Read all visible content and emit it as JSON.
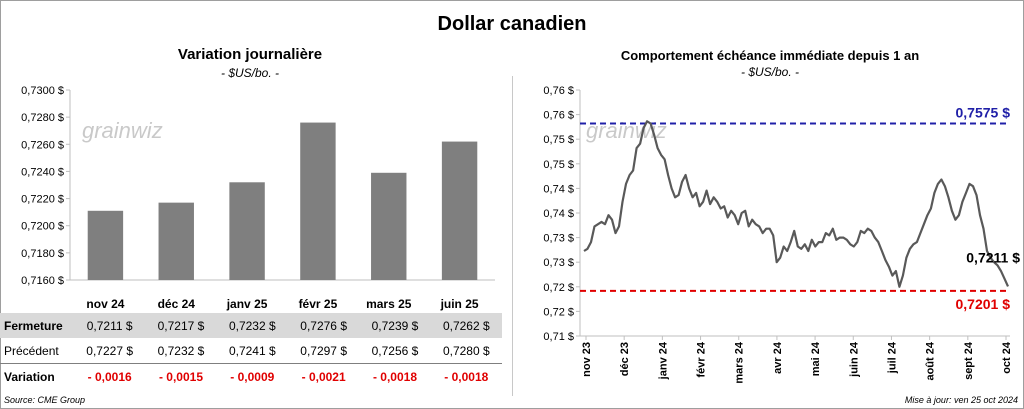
{
  "title": "Dollar canadien",
  "watermark": "grainwiz",
  "left_panel": {
    "title": "Variation  journalière",
    "subtitle": "- $US/bo. -"
  },
  "right_panel": {
    "title": "Comportement échéance immédiate depuis 1 an",
    "subtitle": "- $US/bo. -"
  },
  "table": {
    "rows": [
      {
        "label": "Fermeture",
        "cells": [
          "0,7211  $",
          "0,7217  $",
          "0,7232  $",
          "0,7276  $",
          "0,7239  $",
          "0,7262  $"
        ]
      },
      {
        "label": "Précédent",
        "cells": [
          "0,7227  $",
          "0,7232  $",
          "0,7241  $",
          "0,7297  $",
          "0,7256  $",
          "0,7280  $"
        ]
      },
      {
        "label": "Variation",
        "cells": [
          "- 0,0016",
          "- 0,0015",
          "- 0,0009",
          "- 0,0021",
          "- 0,0018",
          "- 0,0018"
        ]
      }
    ]
  },
  "footer": {
    "source": "Source: CME Group",
    "updated": "Mise à jour: ven 25 oct 2024"
  },
  "colors": {
    "bar": "#7f7f7f",
    "line": "#595959",
    "high_line": "#2020a8",
    "low_line": "#e00000",
    "table_shade": "#d9d9d9"
  },
  "chart_data": [
    {
      "type": "bar",
      "categories": [
        "nov 24",
        "déc 24",
        "janv 25",
        "févr 25",
        "mars 25",
        "juin 25"
      ],
      "values": [
        0.7211,
        0.7217,
        0.7232,
        0.7276,
        0.7239,
        0.7262
      ],
      "ylim": [
        0.716,
        0.73
      ],
      "yticks": [
        "0,7160 $",
        "0,7180 $",
        "0,7200 $",
        "0,7220 $",
        "0,7240 $",
        "0,7260 $",
        "0,7280 $",
        "0,7300 $"
      ],
      "grid": false
    },
    {
      "type": "line",
      "x_labels": [
        "nov 23",
        "déc 23",
        "janv 24",
        "févr 24",
        "mars 24",
        "avr 24",
        "mai 24",
        "juin 24",
        "juil 24",
        "août 24",
        "sept 24",
        "oct 24"
      ],
      "x_start": "2023-10-26",
      "x_end": "2024-10-25",
      "series": [
        {
          "values": [
            0.729,
            0.7295,
            0.731,
            0.7345,
            0.735,
            0.7355,
            0.735,
            0.737,
            0.736,
            0.733,
            0.7345,
            0.74,
            0.744,
            0.746,
            0.747,
            0.752,
            0.753,
            0.7565,
            0.758,
            0.7575,
            0.755,
            0.752,
            0.7505,
            0.7495,
            0.746,
            0.743,
            0.741,
            0.7415,
            0.7445,
            0.746,
            0.743,
            0.741,
            0.742,
            0.739,
            0.74,
            0.7425,
            0.7395,
            0.741,
            0.74,
            0.7385,
            0.739,
            0.7365,
            0.738,
            0.737,
            0.735,
            0.7375,
            0.738,
            0.7345,
            0.736,
            0.735,
            0.7345,
            0.733,
            0.734,
            0.734,
            0.7325,
            0.7265,
            0.7275,
            0.73,
            0.729,
            0.731,
            0.7335,
            0.73,
            0.7295,
            0.7305,
            0.729,
            0.7315,
            0.73,
            0.731,
            0.731,
            0.733,
            0.7325,
            0.734,
            0.7315,
            0.732,
            0.732,
            0.7315,
            0.7305,
            0.73,
            0.731,
            0.7335,
            0.733,
            0.734,
            0.7335,
            0.732,
            0.731,
            0.729,
            0.727,
            0.7255,
            0.7235,
            0.7245,
            0.721,
            0.7235,
            0.7275,
            0.7295,
            0.7305,
            0.731,
            0.733,
            0.735,
            0.737,
            0.7385,
            0.742,
            0.744,
            0.745,
            0.7435,
            0.741,
            0.738,
            0.736,
            0.737,
            0.74,
            0.742,
            0.744,
            0.7435,
            0.7415,
            0.737,
            0.734,
            0.729,
            0.7275,
            0.7265,
            0.7258,
            0.7245,
            0.7228,
            0.7211
          ]
        }
      ],
      "ylim": [
        0.71,
        0.765
      ],
      "yticks": [
        "0,71 $",
        "0,72 $",
        "0,72 $",
        "0,73 $",
        "0,73 $",
        "0,74 $",
        "0,74 $",
        "0,75 $",
        "0,75 $",
        "0,76 $",
        "0,76 $"
      ],
      "annotations": [
        {
          "label": "0,7575 $",
          "value": 0.7575,
          "style": "dashed",
          "color": "#2020a8"
        },
        {
          "label": "0,7201 $",
          "value": 0.7201,
          "style": "dashed",
          "color": "#e00000"
        },
        {
          "label": "0,7211 $",
          "value": 0.7211
        }
      ],
      "grid": false
    }
  ]
}
